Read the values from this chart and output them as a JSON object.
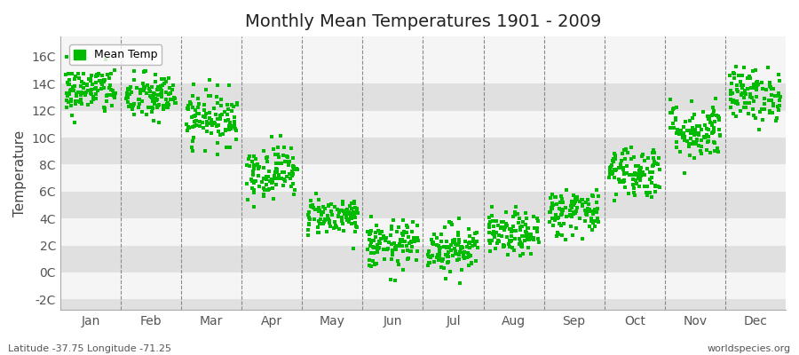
{
  "title": "Monthly Mean Temperatures 1901 - 2009",
  "ylabel": "Temperature",
  "bottom_left_label": "Latitude -37.75 Longitude -71.25",
  "bottom_right_label": "worldspecies.org",
  "legend_label": "Mean Temp",
  "dot_color": "#00BB00",
  "background_color": "#FFFFFF",
  "plot_bg_color": "#EBEBEB",
  "band_color_light": "#F5F5F5",
  "band_color_dark": "#E0E0E0",
  "ytick_labels": [
    "-2C",
    "0C",
    "2C",
    "4C",
    "6C",
    "8C",
    "10C",
    "12C",
    "14C",
    "16C"
  ],
  "ytick_values": [
    -2,
    0,
    2,
    4,
    6,
    8,
    10,
    12,
    14,
    16
  ],
  "ylim": [
    -2.8,
    17.5
  ],
  "month_names": [
    "Jan",
    "Feb",
    "Mar",
    "Apr",
    "May",
    "Jun",
    "Jul",
    "Aug",
    "Sep",
    "Oct",
    "Nov",
    "Dec"
  ],
  "month_means": [
    13.5,
    13.0,
    11.5,
    7.5,
    4.2,
    2.0,
    1.8,
    2.8,
    4.5,
    7.5,
    10.5,
    13.2
  ],
  "month_stds": [
    0.9,
    0.9,
    1.0,
    1.0,
    0.7,
    0.9,
    0.9,
    0.8,
    0.9,
    1.0,
    1.1,
    1.0
  ],
  "month_ranges": [
    1.5,
    1.5,
    1.5,
    1.5,
    1.2,
    1.5,
    1.5,
    1.2,
    1.3,
    1.5,
    1.8,
    1.8
  ],
  "n_years": 109,
  "seed": 42
}
